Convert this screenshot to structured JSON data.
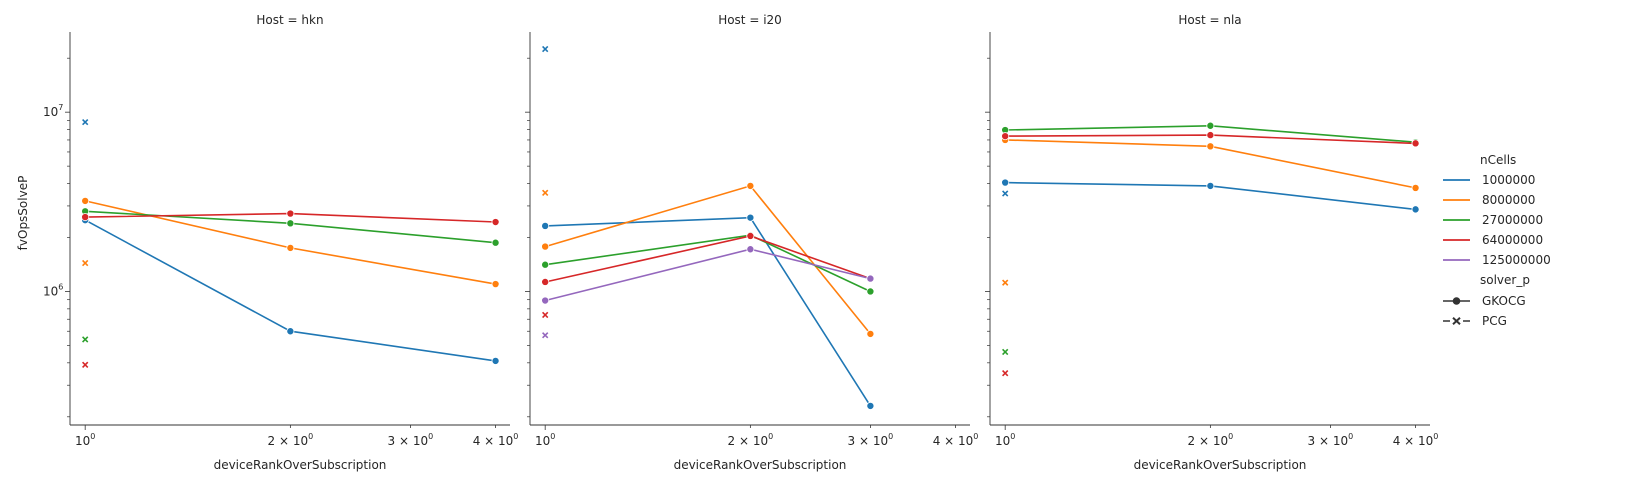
{
  "chart_data": {
    "type": "line",
    "facet_label_prefix": "Host = ",
    "xlabel": "deviceRankOverSubscription",
    "ylabel": "fvOpsSolveP",
    "x_scale": "log",
    "y_scale": "log",
    "xlim": [
      0.95,
      4.2
    ],
    "ylim": [
      180000,
      28000000
    ],
    "x_ticks": [
      {
        "value": 1,
        "base": "10",
        "exp": "0"
      },
      {
        "value": 2,
        "base": "2 × 10",
        "exp": "0"
      },
      {
        "value": 3,
        "base": "3 × 10",
        "exp": "0"
      },
      {
        "value": 4,
        "base": "4 × 10",
        "exp": "0"
      }
    ],
    "y_ticks": [
      {
        "value": 1000000,
        "base": "10",
        "exp": "6"
      },
      {
        "value": 10000000,
        "base": "10",
        "exp": "7"
      }
    ],
    "grid": false,
    "legend": {
      "placement": "right",
      "hue_title": "nCells",
      "style_title": "solver_p",
      "hue_entries": [
        {
          "label": "1000000",
          "color": "#1f77b4"
        },
        {
          "label": "8000000",
          "color": "#ff7f0e"
        },
        {
          "label": "27000000",
          "color": "#2ca02c"
        },
        {
          "label": "64000000",
          "color": "#d62728"
        },
        {
          "label": "125000000",
          "color": "#9467bd"
        }
      ],
      "style_entries": [
        {
          "label": "GKOCG",
          "marker": "circle"
        },
        {
          "label": "PCG",
          "marker": "x"
        }
      ]
    },
    "facets": [
      {
        "host": "hkn",
        "series": [
          {
            "ncells": "1000000",
            "solver": "GKOCG",
            "x": [
              1,
              2,
              4
            ],
            "y": [
              2500000,
              600000,
              410000
            ]
          },
          {
            "ncells": "8000000",
            "solver": "GKOCG",
            "x": [
              1,
              2,
              4
            ],
            "y": [
              3200000,
              1750000,
              1100000
            ]
          },
          {
            "ncells": "27000000",
            "solver": "GKOCG",
            "x": [
              1,
              2,
              4
            ],
            "y": [
              2800000,
              2400000,
              1870000
            ]
          },
          {
            "ncells": "64000000",
            "solver": "GKOCG",
            "x": [
              1,
              2,
              4
            ],
            "y": [
              2600000,
              2720000,
              2440000
            ]
          },
          {
            "ncells": "1000000",
            "solver": "PCG",
            "x": [
              1
            ],
            "y": [
              8800000
            ]
          },
          {
            "ncells": "8000000",
            "solver": "PCG",
            "x": [
              1
            ],
            "y": [
              1440000
            ]
          },
          {
            "ncells": "27000000",
            "solver": "PCG",
            "x": [
              1
            ],
            "y": [
              540000
            ]
          },
          {
            "ncells": "64000000",
            "solver": "PCG",
            "x": [
              1
            ],
            "y": [
              390000
            ]
          }
        ]
      },
      {
        "host": "i20",
        "series": [
          {
            "ncells": "1000000",
            "solver": "GKOCG",
            "x": [
              1,
              2,
              3
            ],
            "y": [
              2320000,
              2580000,
              230000
            ]
          },
          {
            "ncells": "8000000",
            "solver": "GKOCG",
            "x": [
              1,
              2,
              3
            ],
            "y": [
              1780000,
              3880000,
              580000
            ]
          },
          {
            "ncells": "27000000",
            "solver": "GKOCG",
            "x": [
              1,
              2,
              3
            ],
            "y": [
              1410000,
              2060000,
              1000000
            ]
          },
          {
            "ncells": "64000000",
            "solver": "GKOCG",
            "x": [
              1,
              2,
              3
            ],
            "y": [
              1130000,
              2040000,
              1180000
            ]
          },
          {
            "ncells": "125000000",
            "solver": "GKOCG",
            "x": [
              1,
              2,
              3
            ],
            "y": [
              890000,
              1720000,
              1180000
            ]
          },
          {
            "ncells": "1000000",
            "solver": "PCG",
            "x": [
              1
            ],
            "y": [
              22500000
            ]
          },
          {
            "ncells": "8000000",
            "solver": "PCG",
            "x": [
              1
            ],
            "y": [
              3550000
            ]
          },
          {
            "ncells": "64000000",
            "solver": "PCG",
            "x": [
              1
            ],
            "y": [
              740000
            ]
          },
          {
            "ncells": "125000000",
            "solver": "PCG",
            "x": [
              1
            ],
            "y": [
              570000
            ]
          }
        ]
      },
      {
        "host": "nla",
        "series": [
          {
            "ncells": "1000000",
            "solver": "GKOCG",
            "x": [
              1,
              2,
              4
            ],
            "y": [
              4050000,
              3880000,
              2870000
            ]
          },
          {
            "ncells": "8000000",
            "solver": "GKOCG",
            "x": [
              1,
              2,
              4
            ],
            "y": [
              7000000,
              6450000,
              3780000
            ]
          },
          {
            "ncells": "27000000",
            "solver": "GKOCG",
            "x": [
              1,
              2,
              4
            ],
            "y": [
              7950000,
              8400000,
              6800000
            ]
          },
          {
            "ncells": "64000000",
            "solver": "GKOCG",
            "x": [
              1,
              2,
              4
            ],
            "y": [
              7350000,
              7450000,
              6700000
            ]
          },
          {
            "ncells": "1000000",
            "solver": "PCG",
            "x": [
              1
            ],
            "y": [
              3520000
            ]
          },
          {
            "ncells": "8000000",
            "solver": "PCG",
            "x": [
              1
            ],
            "y": [
              1120000
            ]
          },
          {
            "ncells": "27000000",
            "solver": "PCG",
            "x": [
              1
            ],
            "y": [
              460000
            ]
          },
          {
            "ncells": "64000000",
            "solver": "PCG",
            "x": [
              1
            ],
            "y": [
              350000
            ]
          }
        ]
      }
    ]
  }
}
